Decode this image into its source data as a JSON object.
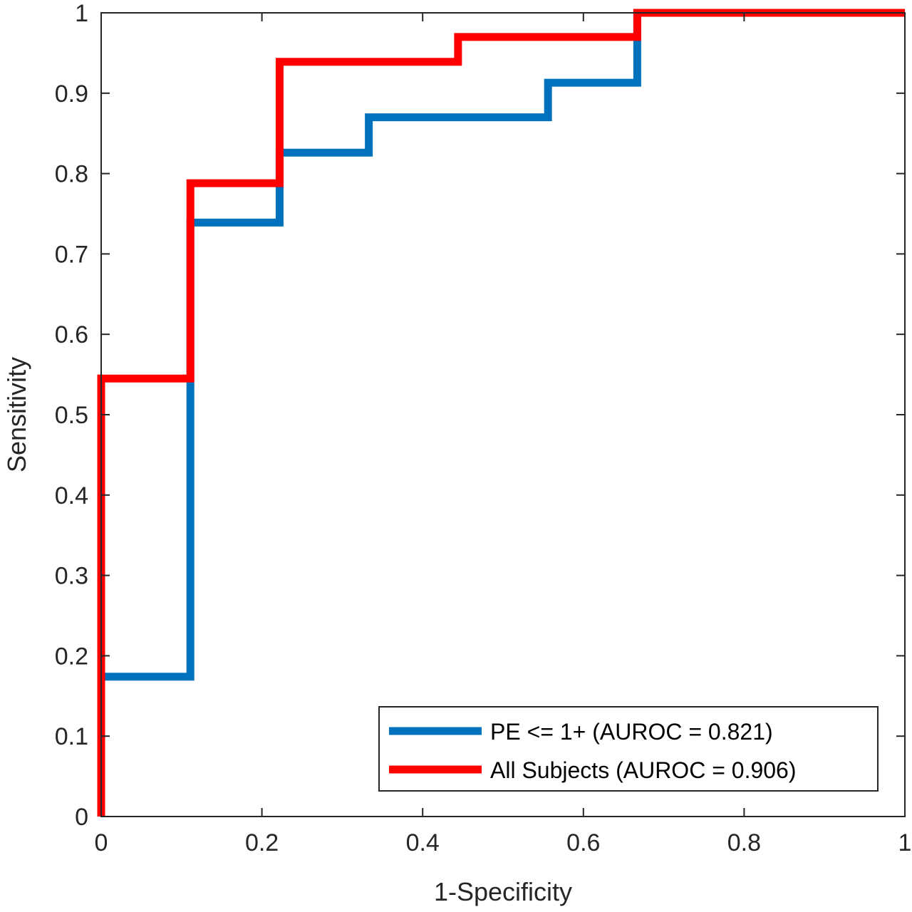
{
  "chart_data": {
    "type": "line",
    "title": "",
    "xlabel": "1-Specificity",
    "ylabel": "Sensitivity",
    "xlim": [
      0,
      1
    ],
    "ylim": [
      0,
      1
    ],
    "xticks": [
      "0",
      "0.2",
      "0.4",
      "0.6",
      "0.8",
      "1"
    ],
    "yticks": [
      "0",
      "0.1",
      "0.2",
      "0.3",
      "0.4",
      "0.5",
      "0.6",
      "0.7",
      "0.8",
      "0.9",
      "1"
    ],
    "grid": false,
    "legend_position": "bottom-right",
    "series": [
      {
        "name": "PE <= 1+ (AUROC = 0.821)",
        "color": "#0072BD",
        "x": [
          0,
          0,
          0.111,
          0.111,
          0.222,
          0.222,
          0.333,
          0.333,
          0.556,
          0.556,
          0.667,
          0.667,
          1
        ],
        "y": [
          0,
          0.174,
          0.174,
          0.739,
          0.739,
          0.826,
          0.826,
          0.87,
          0.87,
          0.913,
          0.913,
          1,
          1
        ]
      },
      {
        "name": "All Subjects (AUROC = 0.906)",
        "color": "#FF0000",
        "x": [
          0,
          0,
          0.111,
          0.111,
          0.222,
          0.222,
          0.444,
          0.444,
          0.667,
          0.667,
          1
        ],
        "y": [
          0,
          0.545,
          0.545,
          0.788,
          0.788,
          0.939,
          0.939,
          0.97,
          0.97,
          1,
          1
        ]
      }
    ]
  }
}
